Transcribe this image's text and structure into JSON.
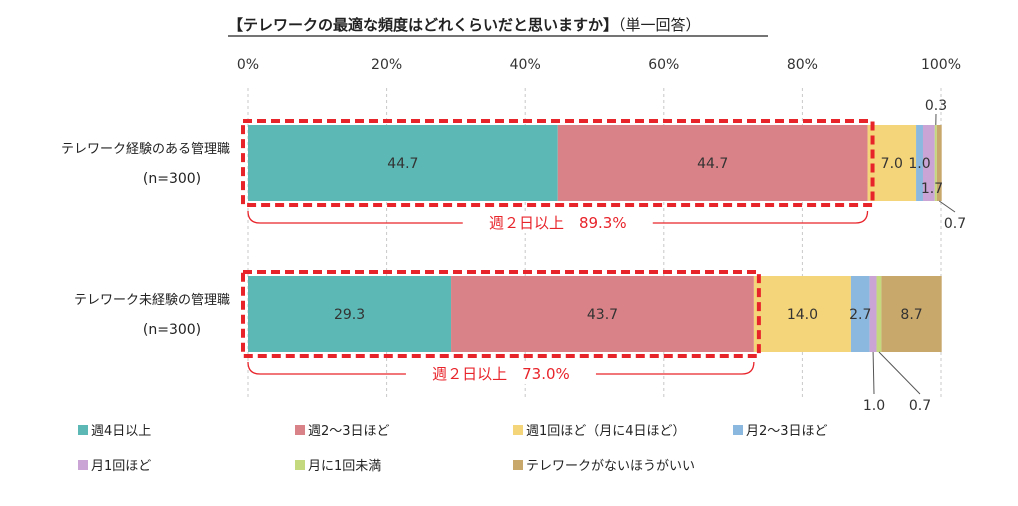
{
  "chart_data": {
    "type": "bar",
    "orientation": "horizontal",
    "stacked": true,
    "title": "【テレワークの最適な頻度はどれくらいだと思いますか】",
    "subtitle": "（単一回答）",
    "x_ticks": [
      "0%",
      "20%",
      "40%",
      "60%",
      "80%",
      "100%"
    ],
    "xlim": [
      0,
      100
    ],
    "grid": true,
    "categories": [
      {
        "line1": "テレワーク経験のある管理職",
        "line2": "(n=300)"
      },
      {
        "line1": "テレワーク未経験の管理職",
        "line2": "(n=300)"
      }
    ],
    "series": [
      {
        "name": "週4日以上",
        "color": "#5bb8b4",
        "values": [
          44.7,
          29.3
        ],
        "labels": [
          "44.7",
          "29.3"
        ]
      },
      {
        "name": "週2～3日ほど",
        "color": "#d98287",
        "values": [
          44.7,
          43.7
        ],
        "labels": [
          "44.7",
          "43.7"
        ]
      },
      {
        "name": "週1回ほど（月に4日ほど）",
        "color": "#f5d57a",
        "values": [
          7.0,
          14.0
        ],
        "labels": [
          "7.0",
          "14.0"
        ]
      },
      {
        "name": "月2～3日ほど",
        "color": "#8bb8de",
        "values": [
          1.0,
          2.7
        ],
        "labels": [
          "1.0",
          "2.7"
        ]
      },
      {
        "name": "月1回ほど",
        "color": "#c9a4d4",
        "values": [
          1.7,
          1.0
        ],
        "labels": [
          "1.7",
          "1.0"
        ]
      },
      {
        "name": "月に1回未満",
        "color": "#c4d87e",
        "values": [
          0.3,
          0.7
        ],
        "labels": [
          "0.3",
          "0.7"
        ]
      },
      {
        "name": "テレワークがないほうがいい",
        "color": "#c9a86b",
        "values": [
          0.7,
          8.7
        ],
        "labels": [
          "0.7",
          "8.7"
        ]
      }
    ],
    "annotations": [
      {
        "text": "週２日以上　89.3%",
        "row": 0,
        "covers_series": 2,
        "color": "#e8242b"
      },
      {
        "text": "週２日以上　73.0%",
        "row": 1,
        "covers_series": 2,
        "color": "#e8242b"
      }
    ],
    "legend_position": "bottom"
  }
}
